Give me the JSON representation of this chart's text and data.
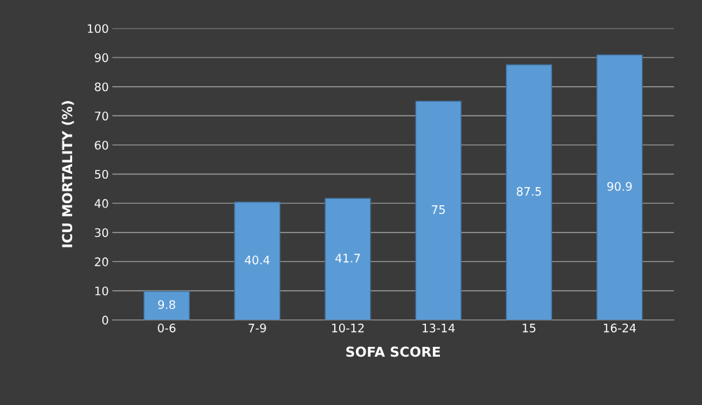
{
  "chart_data": {
    "type": "bar",
    "xlabel": "SOFA SCORE",
    "ylabel": "ICU MORTALITY (%)",
    "categories": [
      "0-6",
      "7-9",
      "10-12",
      "13-14",
      "15",
      "16-24"
    ],
    "values": [
      9.8,
      40.4,
      41.7,
      75,
      87.5,
      90.9
    ],
    "color": "#5b9bd5",
    "ylim": [
      0,
      100
    ],
    "yticks": [
      0,
      10,
      20,
      30,
      40,
      50,
      60,
      70,
      80,
      90,
      100
    ],
    "grid": "y",
    "data_labels": true
  }
}
